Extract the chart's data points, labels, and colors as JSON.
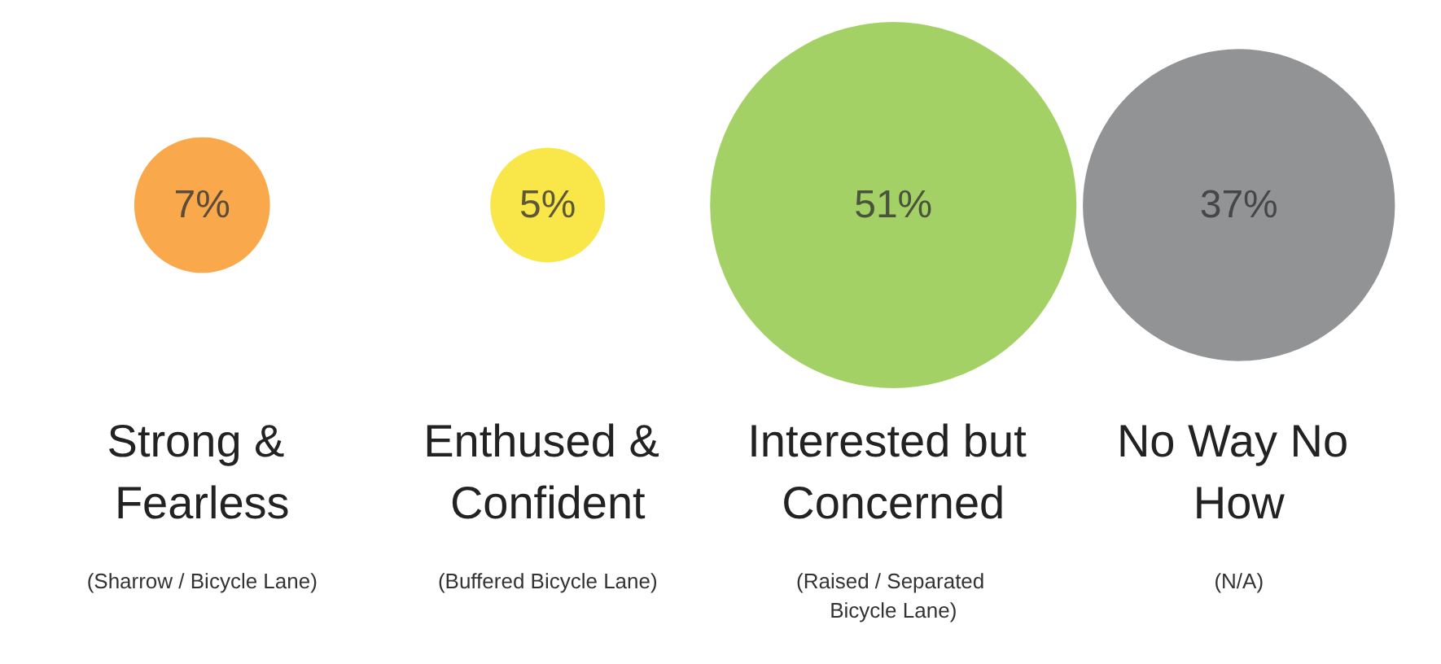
{
  "chart_data": {
    "type": "other",
    "categories": [
      "Strong & Fearless",
      "Enthused & Confident",
      "Interested but Concerned",
      "No Way No How"
    ],
    "values": [
      7,
      5,
      51,
      37
    ],
    "value_labels": [
      "7%",
      "5%",
      "51%",
      "37%"
    ],
    "colors": [
      "#f7931e",
      "#f7e01b",
      "#8dc63f",
      "#77787b"
    ],
    "annotations": [
      {
        "text": "(Sharrow / Bicycle Lane)",
        "x": "Strong & Fearless"
      },
      {
        "text": "(Buffered Bicycle Lane)",
        "x": "Enthused & Confident"
      },
      {
        "text": "(Raised / Separated Bicycle Lane)",
        "x": "Interested but Concerned"
      },
      {
        "text": "(N/A)",
        "x": "No Way No How"
      }
    ]
  }
}
